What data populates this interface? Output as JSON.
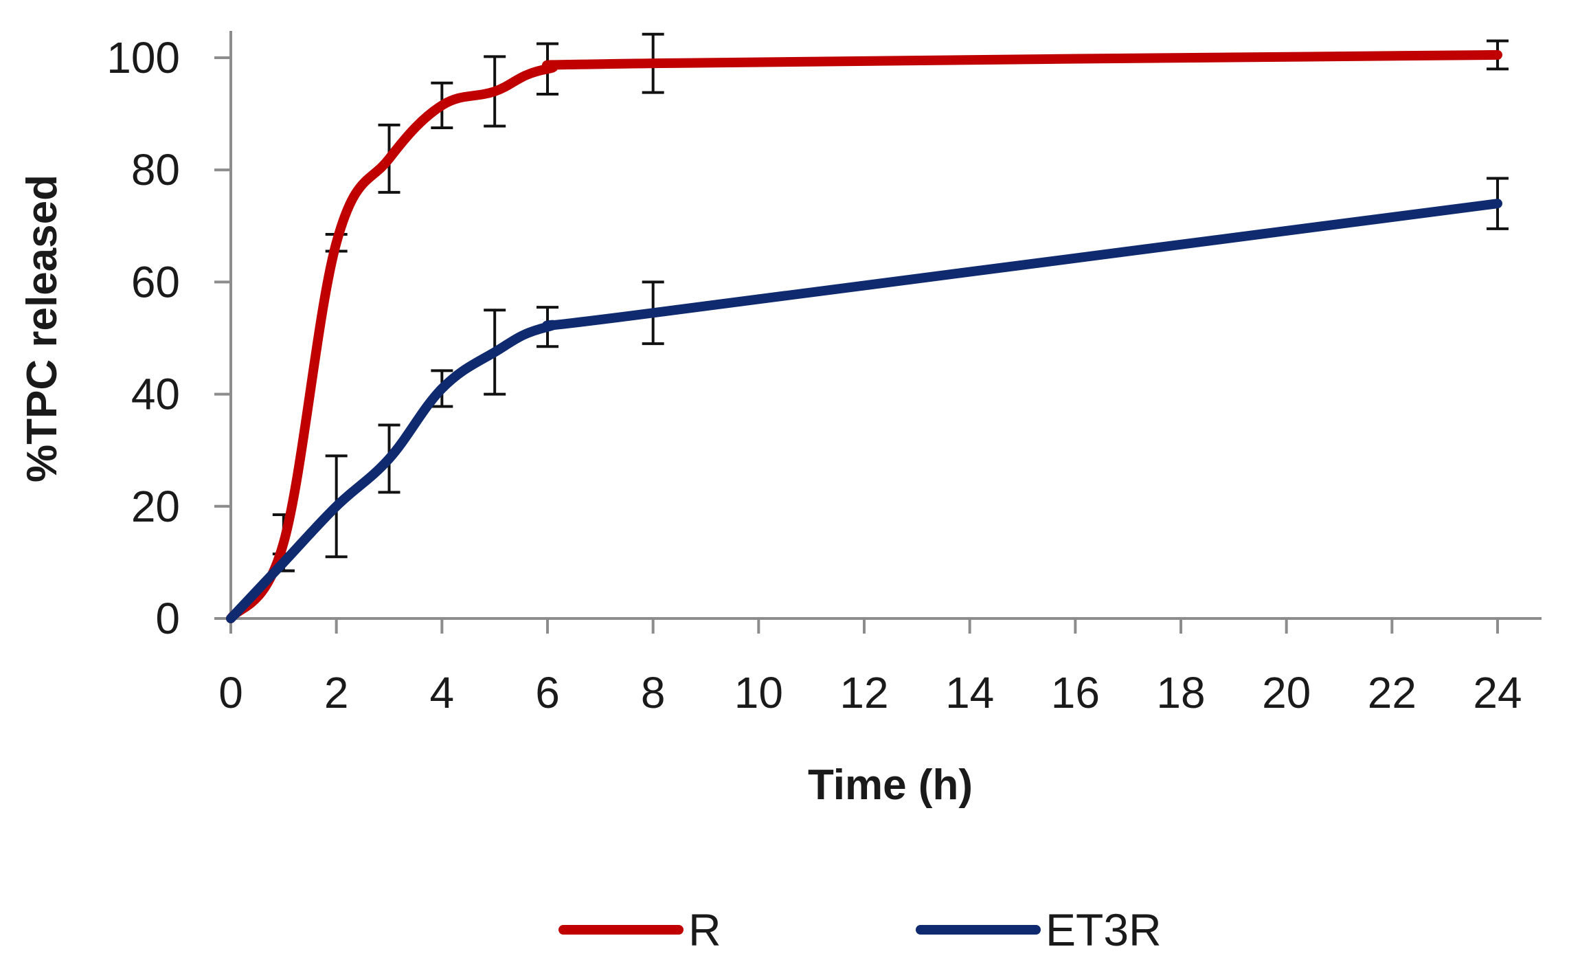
{
  "chart_data": {
    "type": "line",
    "title": "",
    "xlabel": "Time  (h)",
    "ylabel": "%TPC released",
    "xlim": [
      0,
      24
    ],
    "ylim": [
      0,
      100
    ],
    "xticks": [
      "0",
      "2",
      "4",
      "6",
      "8",
      "10",
      "12",
      "14",
      "16",
      "18",
      "20",
      "22",
      "24"
    ],
    "yticks": [
      "0",
      "20",
      "40",
      "60",
      "80",
      "100"
    ],
    "grid": false,
    "legend_position": "bottom-center",
    "series": [
      {
        "name": "R",
        "color": "#c00000",
        "x": [
          0,
          1,
          2,
          3,
          4,
          5,
          6,
          8,
          24
        ],
        "y": [
          0,
          13.5,
          67,
          82,
          91.5,
          94,
          98,
          99,
          100.5
        ],
        "error": [
          0,
          5,
          1.5,
          6,
          4,
          6.2,
          4.5,
          5.2,
          2.5
        ]
      },
      {
        "name": "ET3R",
        "color": "#0f2a6e",
        "x": [
          0,
          1,
          2,
          3,
          4,
          5,
          6,
          8,
          24
        ],
        "y": [
          0,
          10,
          20,
          28.5,
          41,
          47.5,
          52,
          54.5,
          74
        ],
        "error": [
          0,
          1.5,
          9,
          6,
          3.2,
          7.5,
          3.5,
          5.5,
          4.5
        ]
      }
    ]
  }
}
